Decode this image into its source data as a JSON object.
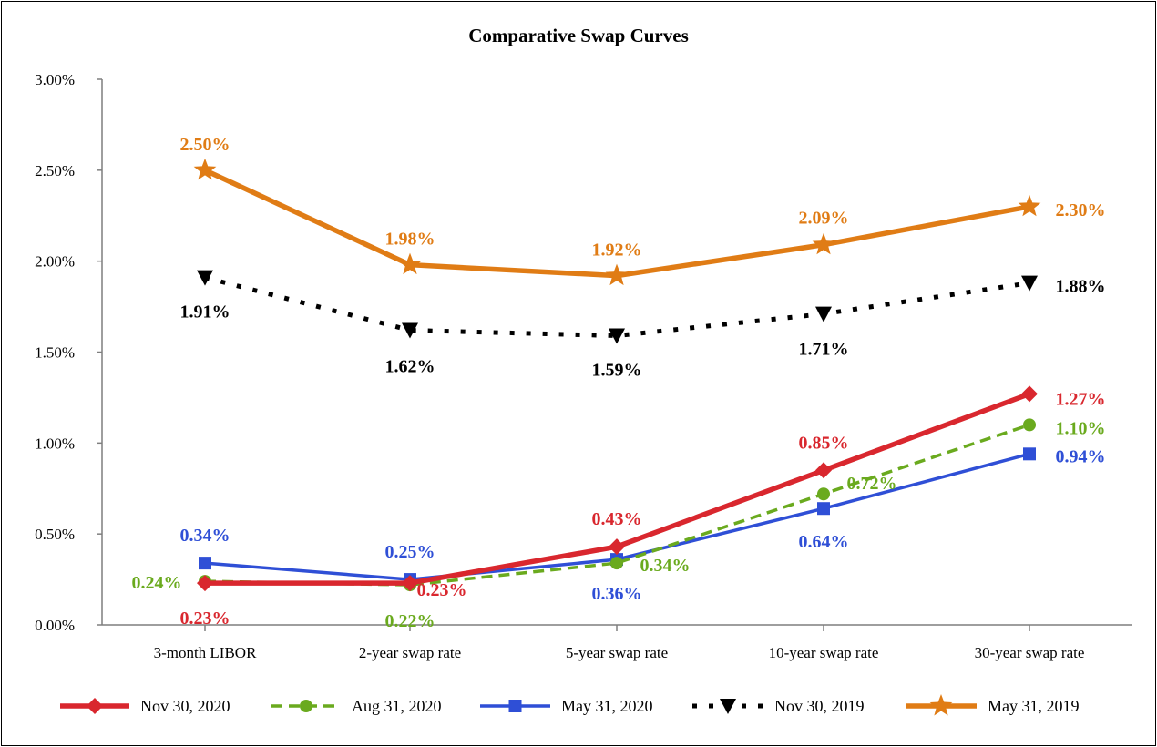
{
  "chart_data": {
    "type": "line",
    "title": "Comparative Swap Curves",
    "xlabel": "",
    "ylabel": "",
    "categories": [
      "3-month LIBOR",
      "2-year swap rate",
      "5-year swap rate",
      "10-year swap rate",
      "30-year swap rate"
    ],
    "ylim": [
      0,
      3.0
    ],
    "yticks": [
      "0.00%",
      "0.50%",
      "1.00%",
      "1.50%",
      "2.00%",
      "2.50%",
      "3.00%"
    ],
    "legend_position": "bottom",
    "grid": false,
    "series": [
      {
        "name": "Nov 30, 2020",
        "color": "#d9272e",
        "style": "solid",
        "marker": "diamond",
        "values": [
          0.23,
          0.23,
          0.43,
          0.85,
          1.27
        ],
        "labels": [
          "0.23%",
          "0.23%",
          "0.43%",
          "0.85%",
          "1.27%"
        ]
      },
      {
        "name": "Aug 31, 2020",
        "color": "#6aaa1e",
        "style": "dashed",
        "marker": "circle",
        "values": [
          0.24,
          0.22,
          0.34,
          0.72,
          1.1
        ],
        "labels": [
          "0.24%",
          "0.22%",
          "0.34%",
          "0.72%",
          "1.10%"
        ]
      },
      {
        "name": "May 31, 2020",
        "color": "#2f4fd6",
        "style": "solid",
        "marker": "square",
        "values": [
          0.34,
          0.25,
          0.36,
          0.64,
          0.94
        ],
        "labels": [
          "0.34%",
          "0.25%",
          "0.36%",
          "0.64%",
          "0.94%"
        ]
      },
      {
        "name": "Nov 30, 2019",
        "color": "#000000",
        "style": "dotted",
        "marker": "triangle-down",
        "values": [
          1.91,
          1.62,
          1.59,
          1.71,
          1.88
        ],
        "labels": [
          "1.91%",
          "1.62%",
          "1.59%",
          "1.71%",
          "1.88%"
        ]
      },
      {
        "name": "May 31, 2019",
        "color": "#e07c15",
        "style": "solid",
        "marker": "star",
        "values": [
          2.5,
          1.98,
          1.92,
          2.09,
          2.3
        ],
        "labels": [
          "2.50%",
          "1.98%",
          "1.92%",
          "2.09%",
          "2.30%"
        ]
      }
    ]
  }
}
